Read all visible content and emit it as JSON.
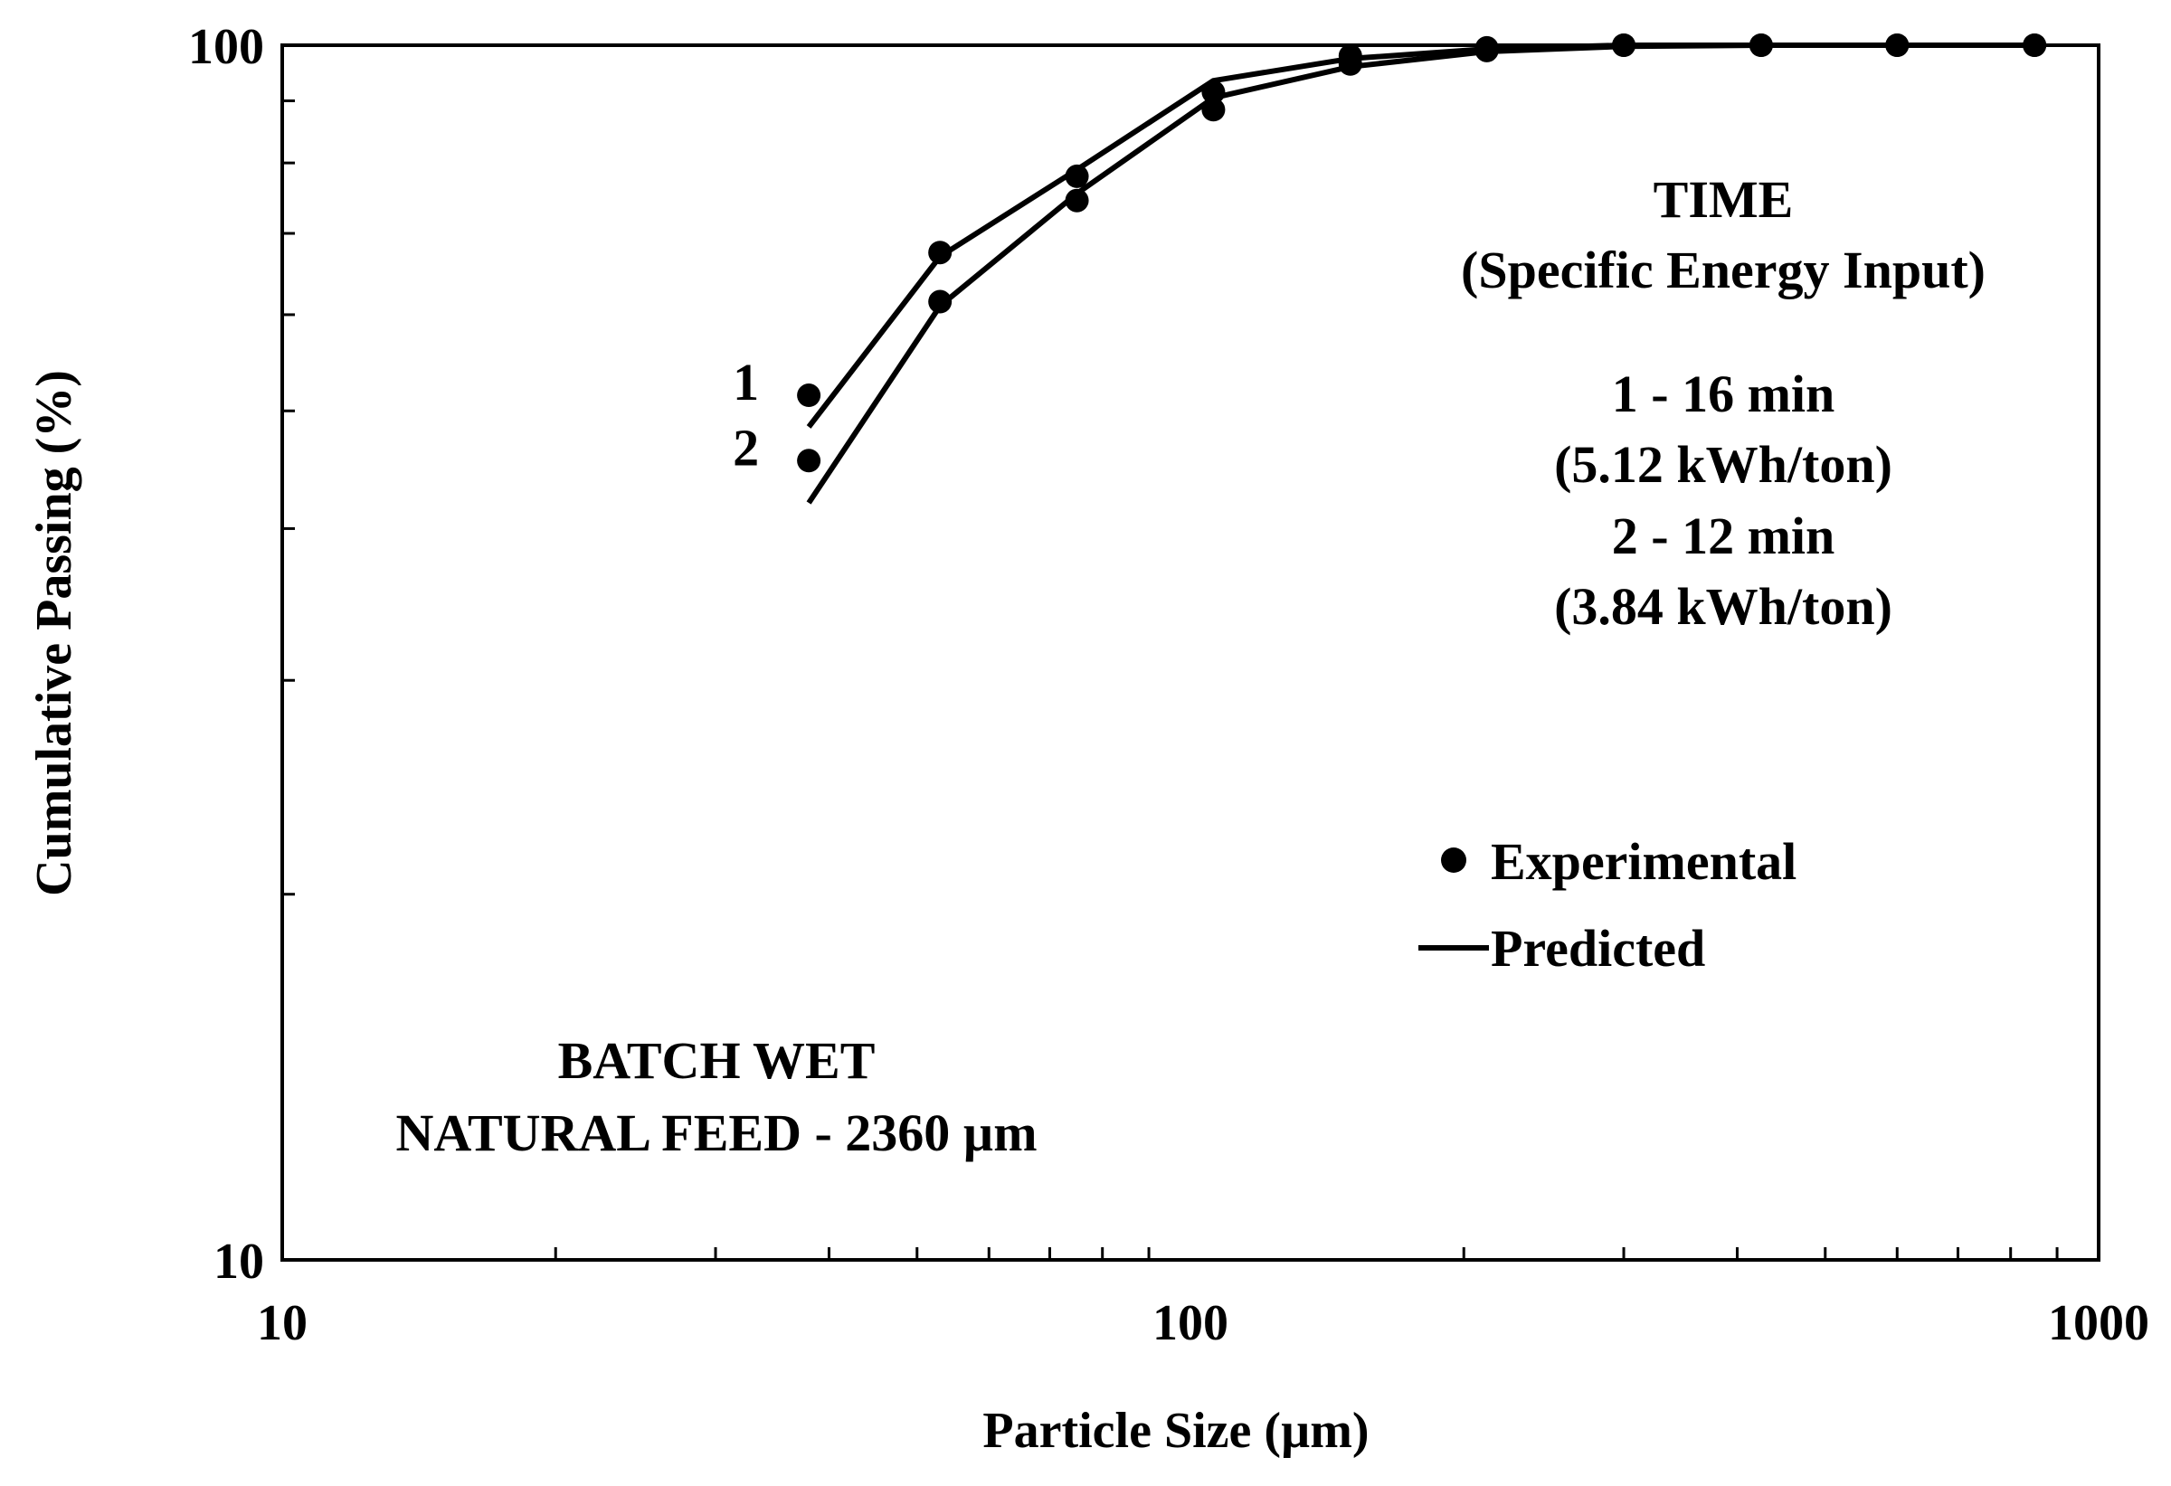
{
  "chart_data": {
    "type": "line",
    "title": "",
    "xlabel": "Particle Size (µm)",
    "ylabel": "Cumulative Passing (%)",
    "xscale": "log",
    "yscale": "log",
    "xlim": [
      10,
      1000
    ],
    "ylim": [
      10,
      100
    ],
    "x_ticks": [
      {
        "value": 10,
        "label": "10"
      },
      {
        "value": 100,
        "label": "100"
      },
      {
        "value": 1000,
        "label": "1000"
      }
    ],
    "y_ticks": [
      {
        "value": 10,
        "label": "10"
      },
      {
        "value": 100,
        "label": "100"
      }
    ],
    "series": [
      {
        "name": "1",
        "label": "1",
        "experimental": {
          "x": [
            38,
            53,
            75,
            106,
            150,
            212,
            300,
            425,
            600,
            850
          ],
          "y": [
            51.5,
            67.5,
            78.0,
            91.5,
            98.0,
            99.5,
            100,
            100,
            100,
            100
          ]
        },
        "predicted": {
          "x": [
            38,
            53,
            75,
            106,
            150,
            212,
            300,
            425,
            600,
            850
          ],
          "y": [
            48.5,
            67.0,
            79.0,
            93.5,
            97.5,
            99.3,
            100,
            100,
            100,
            100
          ]
        }
      },
      {
        "name": "2",
        "label": "2",
        "experimental": {
          "x": [
            38,
            53,
            75,
            106,
            150,
            212,
            300,
            425,
            600,
            850
          ],
          "y": [
            45.5,
            61.5,
            74.5,
            88.5,
            96.5,
            99.0,
            100,
            100,
            100,
            100
          ]
        },
        "predicted": {
          "x": [
            38,
            53,
            75,
            106,
            150,
            212,
            300,
            425,
            600,
            850
          ],
          "y": [
            42.0,
            61.0,
            75.5,
            90.5,
            96.0,
            98.8,
            99.8,
            100,
            100,
            100
          ]
        }
      }
    ],
    "legend": {
      "position": "right",
      "entries": [
        {
          "marker": "circle",
          "label": "Experimental"
        },
        {
          "marker": "line",
          "label": "Predicted"
        }
      ]
    },
    "annotations": {
      "time_block": [
        "TIME",
        "(Specific Energy Input)",
        "1 - 16 min",
        "(5.12 kWh/ton)",
        "2 - 12 min",
        "(3.84 kWh/ton)"
      ],
      "batch_block": [
        "BATCH WET",
        "NATURAL FEED - 2360 µm"
      ]
    },
    "colors": {
      "line": "#000000",
      "marker": "#000000",
      "background": "#ffffff"
    }
  }
}
